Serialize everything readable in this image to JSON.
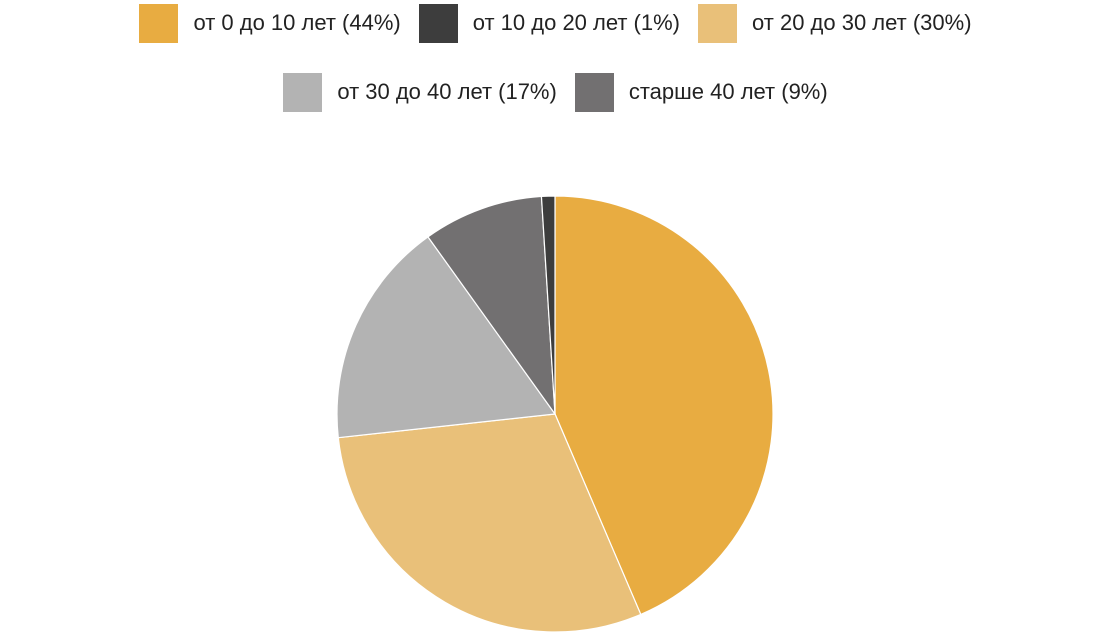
{
  "chart_data": {
    "type": "pie",
    "legend": "top",
    "start_angle_deg": 0,
    "direction": "clockwise",
    "slices": [
      {
        "label": "от 0 до 10 лет (44%)",
        "value": 44,
        "color": "#E8AC41"
      },
      {
        "label": "от 10 до 20 лет (1%)",
        "value": 1,
        "color": "#3D3D3D"
      },
      {
        "label": "от 20 до 30 лет (30%)",
        "value": 30,
        "color": "#E9C079"
      },
      {
        "label": "от 30 до 40 лет (17%)",
        "value": 17,
        "color": "#B3B3B3"
      },
      {
        "label": "старше 40 лет (9%)",
        "value": 9,
        "color": "#727071"
      }
    ],
    "legend_order": [
      0,
      1,
      2,
      3,
      4
    ],
    "draw_order": [
      0,
      2,
      3,
      4,
      1
    ]
  }
}
